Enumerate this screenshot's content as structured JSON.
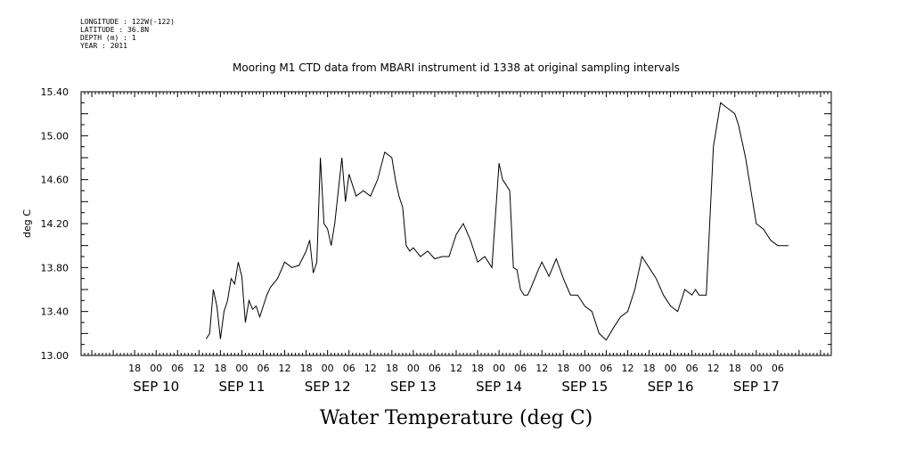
{
  "header": {
    "longitude": "LONGITUDE : 122W(-122)",
    "latitude": "LATITUDE : 36.8N",
    "depth": "DEPTH (m) : 1",
    "year": "YEAR : 2011"
  },
  "chart_data": {
    "type": "line",
    "title": "Mooring M1 CTD data from MBARI instrument id 1338 at original sampling intervals",
    "xlabel": "Water Temperature (deg C)",
    "ylabel": "deg C",
    "ylim": [
      13.0,
      15.4
    ],
    "yticks": [
      "13.00",
      "13.40",
      "13.80",
      "14.20",
      "14.60",
      "15.00",
      "15.40"
    ],
    "xlim_hours_since_sep10_00": [
      -21,
      189
    ],
    "hour_ticks": [
      "18",
      "00",
      "06",
      "12",
      "18",
      "00",
      "06",
      "12",
      "18",
      "00",
      "06",
      "12",
      "18",
      "00",
      "06",
      "12",
      "18",
      "00",
      "06",
      "12",
      "18",
      "00",
      "06",
      "12",
      "18",
      "00",
      "06",
      "12",
      "18",
      "00",
      "06"
    ],
    "day_labels": [
      "SEP 10",
      "SEP 11",
      "SEP 12",
      "SEP 13",
      "SEP 14",
      "SEP 15",
      "SEP 16",
      "SEP 17"
    ],
    "grid": false,
    "series": [
      {
        "x": [
          "SEP 10 14:00",
          "SEP 10 15:00",
          "SEP 10 16:00",
          "SEP 10 17:00",
          "SEP 10 18:00",
          "SEP 10 19:00",
          "SEP 10 20:00",
          "SEP 10 21:00",
          "SEP 10 22:00",
          "SEP 10 23:00",
          "SEP 11 00:00",
          "SEP 11 01:00",
          "SEP 11 02:00",
          "SEP 11 03:00",
          "SEP 11 04:00",
          "SEP 11 05:00",
          "SEP 11 06:00",
          "SEP 11 07:00",
          "SEP 11 08:00",
          "SEP 11 10:00",
          "SEP 11 12:00",
          "SEP 11 14:00",
          "SEP 11 16:00",
          "SEP 11 18:00",
          "SEP 11 19:00",
          "SEP 11 20:00",
          "SEP 11 21:00",
          "SEP 11 22:00",
          "SEP 11 23:00",
          "SEP 12 00:00",
          "SEP 12 01:00",
          "SEP 12 02:00",
          "SEP 12 03:00",
          "SEP 12 04:00",
          "SEP 12 05:00",
          "SEP 12 06:00",
          "SEP 12 07:00",
          "SEP 12 08:00",
          "SEP 12 10:00",
          "SEP 12 12:00",
          "SEP 12 14:00",
          "SEP 12 16:00",
          "SEP 12 18:00",
          "SEP 12 19:00",
          "SEP 12 20:00",
          "SEP 12 21:00",
          "SEP 12 22:00",
          "SEP 12 23:00",
          "SEP 13 00:00",
          "SEP 13 02:00",
          "SEP 13 04:00",
          "SEP 13 06:00",
          "SEP 13 08:00",
          "SEP 13 10:00",
          "SEP 13 12:00",
          "SEP 13 14:00",
          "SEP 13 16:00",
          "SEP 13 18:00",
          "SEP 13 20:00",
          "SEP 13 22:00",
          "SEP 14 00:00",
          "SEP 14 01:00",
          "SEP 14 02:00",
          "SEP 14 03:00",
          "SEP 14 04:00",
          "SEP 14 05:00",
          "SEP 14 06:00",
          "SEP 14 07:00",
          "SEP 14 08:00",
          "SEP 14 09:00",
          "SEP 14 10:00",
          "SEP 14 11:00",
          "SEP 14 12:00",
          "SEP 14 14:00",
          "SEP 14 16:00",
          "SEP 14 18:00",
          "SEP 14 20:00",
          "SEP 14 22:00",
          "SEP 15 00:00",
          "SEP 15 02:00",
          "SEP 15 04:00",
          "SEP 15 06:00",
          "SEP 15 08:00",
          "SEP 15 10:00",
          "SEP 15 12:00",
          "SEP 15 13:00",
          "SEP 15 14:00",
          "SEP 15 16:00",
          "SEP 15 18:00",
          "SEP 15 20:00",
          "SEP 15 22:00",
          "SEP 16 00:00",
          "SEP 16 02:00",
          "SEP 16 04:00",
          "SEP 16 06:00",
          "SEP 16 07:00",
          "SEP 16 08:00",
          "SEP 16 10:00",
          "SEP 16 12:00",
          "SEP 16 14:00",
          "SEP 16 16:00",
          "SEP 16 18:00",
          "SEP 16 19:00",
          "SEP 16 20:00",
          "SEP 16 21:00",
          "SEP 16 22:00",
          "SEP 16 23:00",
          "SEP 17 00:00",
          "SEP 17 02:00",
          "SEP 17 04:00",
          "SEP 17 06:00",
          "SEP 17 08:00",
          "SEP 17 09:00"
        ],
        "y": [
          13.15,
          13.2,
          13.6,
          13.45,
          13.15,
          13.4,
          13.5,
          13.7,
          13.65,
          13.85,
          13.72,
          13.3,
          13.5,
          13.42,
          13.45,
          13.35,
          13.45,
          13.55,
          13.62,
          13.7,
          13.85,
          13.8,
          13.82,
          13.95,
          14.05,
          13.75,
          13.85,
          14.8,
          14.2,
          14.15,
          14.0,
          14.2,
          14.5,
          14.8,
          14.4,
          14.65,
          14.55,
          14.45,
          14.5,
          14.45,
          14.6,
          14.85,
          14.8,
          14.6,
          14.45,
          14.35,
          14.0,
          13.95,
          13.98,
          13.9,
          13.95,
          13.88,
          13.9,
          13.9,
          14.1,
          14.2,
          14.05,
          13.85,
          13.9,
          13.8,
          14.75,
          14.6,
          14.55,
          14.5,
          13.8,
          13.78,
          13.6,
          13.55,
          13.55,
          13.62,
          13.7,
          13.78,
          13.85,
          13.72,
          13.88,
          13.7,
          13.55,
          13.55,
          13.45,
          13.4,
          13.2,
          13.14,
          13.25,
          13.35,
          13.4,
          13.5,
          13.6,
          13.9,
          13.8,
          13.7,
          13.55,
          13.45,
          13.4,
          13.6,
          13.55,
          13.6,
          13.55,
          13.55,
          14.9,
          15.3,
          15.25,
          15.2,
          15.1,
          14.95,
          14.8,
          14.6,
          14.4,
          14.2,
          14.15,
          14.05,
          14.0,
          14.0,
          14.0
        ]
      }
    ]
  }
}
